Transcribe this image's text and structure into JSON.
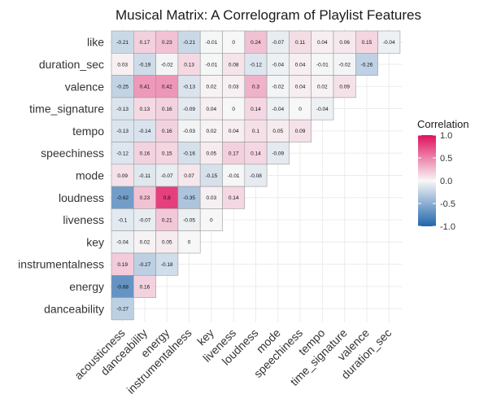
{
  "chart_data": {
    "type": "heatmap",
    "title": "Musical Matrix: A Correlogram of Playlist Features",
    "x_categories": [
      "acousticness",
      "danceability",
      "energy",
      "instrumentalness",
      "key",
      "liveness",
      "loudness",
      "mode",
      "speechiness",
      "tempo",
      "time_signature",
      "valence",
      "duration_sec"
    ],
    "y_categories": [
      "like",
      "duration_sec",
      "valence",
      "time_signature",
      "tempo",
      "speechiness",
      "mode",
      "loudness",
      "liveness",
      "key",
      "instrumentalness",
      "energy",
      "danceability"
    ],
    "values": [
      [
        -0.21,
        0.17,
        0.23,
        -0.21,
        -0.01,
        0,
        0.24,
        -0.07,
        0.11,
        0.04,
        0.06,
        0.15,
        -0.04
      ],
      [
        0.03,
        -0.19,
        -0.02,
        0.13,
        -0.01,
        0.08,
        -0.12,
        -0.04,
        0.04,
        -0.01,
        -0.02,
        -0.26
      ],
      [
        -0.25,
        0.41,
        0.42,
        -0.13,
        0.02,
        0.03,
        0.3,
        -0.02,
        0.04,
        0.02,
        0.09
      ],
      [
        -0.13,
        0.13,
        0.16,
        -0.09,
        0.04,
        0,
        0.14,
        -0.04,
        0,
        -0.04
      ],
      [
        -0.13,
        -0.14,
        0.16,
        -0.03,
        0.02,
        0.04,
        0.1,
        0.05,
        0.09
      ],
      [
        -0.12,
        0.16,
        0.15,
        -0.16,
        0.05,
        0.17,
        0.14,
        -0.09
      ],
      [
        0.09,
        -0.11,
        -0.07,
        0.07,
        -0.15,
        -0.01,
        -0.08
      ],
      [
        -0.62,
        0.23,
        0.8,
        -0.35,
        0.03,
        0.14
      ],
      [
        -0.1,
        -0.07,
        0.21,
        -0.05,
        0
      ],
      [
        -0.04,
        0.02,
        0.05,
        0
      ],
      [
        0.19,
        -0.27,
        -0.18
      ],
      [
        -0.68,
        0.16
      ],
      [
        -0.27
      ]
    ],
    "legend": {
      "title": "Correlation",
      "ticks": [
        1.0,
        0.5,
        0.0,
        -0.5,
        -1.0
      ],
      "tick_labels": [
        "1.0",
        "0.5",
        "0.0",
        "-0.5",
        "-1.0"
      ],
      "position": "right"
    },
    "color_scale": {
      "low": "#2166ac",
      "mid": "#f7f7f7",
      "high": "#e0115f"
    },
    "grid": true
  }
}
